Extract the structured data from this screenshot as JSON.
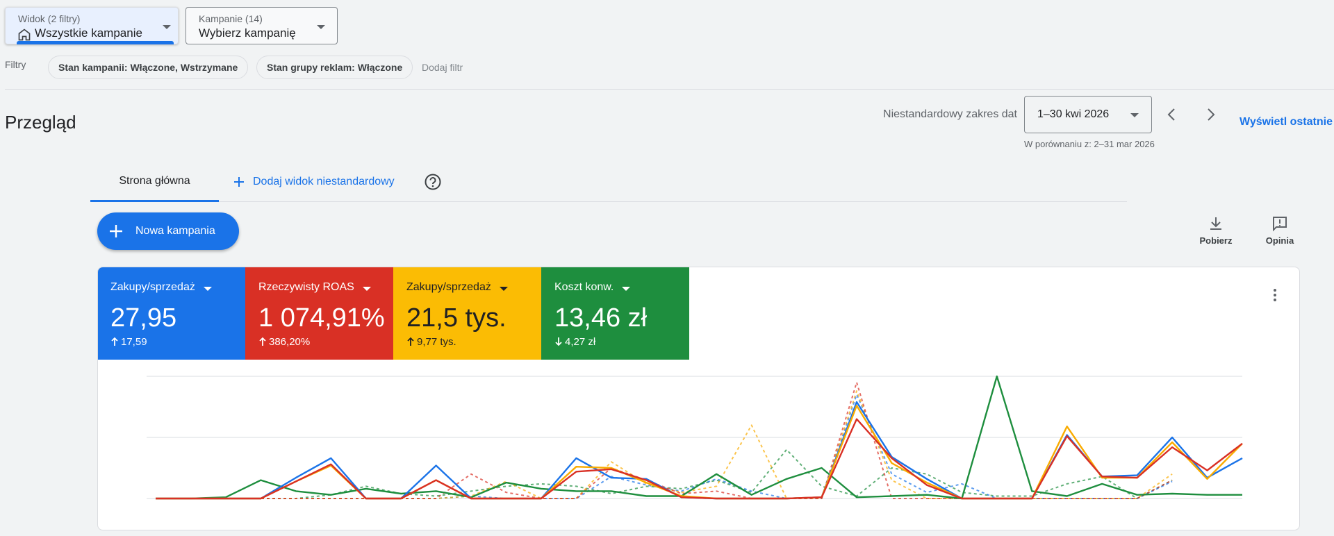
{
  "toolbar": {
    "view_dropdown": {
      "label": "Widok (2 filtry)",
      "value": "Wszystkie kampanie"
    },
    "campaign_dropdown": {
      "label": "Kampanie (14)",
      "value": "Wybierz kampanię"
    }
  },
  "filters": {
    "label": "Filtry",
    "chips": [
      "Stan kampanii: Włączone, Wstrzymane",
      "Stan grupy reklam: Włączone"
    ],
    "add": "Dodaj filtr"
  },
  "header": {
    "title": "Przegląd",
    "date_range_label": "Niestandardowy zakres dat",
    "date_range": "1–30 kwi 2026",
    "comparison": "W porównaniu z: 2–31 mar 2026",
    "view_recent": "Wyświetl ostatnie"
  },
  "tabs": {
    "items": [
      "Strona główna"
    ],
    "add": "Dodaj widok niestandardowy"
  },
  "new_campaign": "Nowa kampania",
  "actions": [
    "Pobierz",
    "Opinia"
  ],
  "scorecards": [
    {
      "label": "Zakupy/sprzedaż",
      "value": "27,95",
      "change": "17,59",
      "direction": "up",
      "color": "#1a73e8"
    },
    {
      "label": "Rzeczywisty ROAS",
      "value": "1 074,91%",
      "change": "386,20%",
      "direction": "up",
      "color": "#d93025"
    },
    {
      "label": "Zakupy/sprzedaż",
      "value": "21,5 tys.",
      "change": "9,77 tys.",
      "direction": "up",
      "color": "#fbbc04"
    },
    {
      "label": "Koszt konw.",
      "value": "13,46 zł",
      "change": "4,27 zł",
      "direction": "down",
      "color": "#1e8e3e"
    }
  ],
  "chart_data": {
    "type": "line",
    "categories": [
      null,
      null,
      null,
      null,
      null,
      null,
      null,
      null,
      null,
      null,
      null,
      null,
      null,
      null,
      null,
      null,
      null,
      null,
      null,
      null,
      null,
      null,
      null,
      null,
      null,
      null,
      null,
      null,
      null,
      null,
      null,
      null
    ],
    "ylim": [
      0,
      100
    ],
    "gridlines": [
      0,
      50,
      100
    ],
    "series": [
      {
        "color": "#1e8e3e",
        "dashed": true,
        "values": [
          0,
          0,
          0,
          0,
          0,
          3,
          10,
          4,
          2,
          6,
          10,
          12,
          10,
          4,
          10,
          8,
          15,
          5,
          40,
          10,
          2,
          25,
          20,
          5,
          2,
          2,
          12,
          18,
          0,
          15,
          null,
          null
        ]
      },
      {
        "color": "#1a73e8",
        "dashed": true,
        "values": [
          0,
          0,
          0,
          0,
          0,
          0,
          0,
          0,
          0,
          2,
          0,
          0,
          0,
          18,
          11,
          6,
          16,
          6,
          0,
          0,
          85,
          20,
          5,
          12,
          0,
          0,
          0,
          0,
          0,
          14,
          null,
          null
        ]
      },
      {
        "color": "#f9ab00",
        "dashed": true,
        "values": [
          0,
          0,
          0,
          0,
          0,
          0,
          0,
          0,
          0,
          2,
          14,
          0,
          0,
          30,
          12,
          5,
          10,
          60,
          0,
          0,
          88,
          15,
          0,
          0,
          0,
          0,
          0,
          0,
          0,
          20,
          null,
          null
        ]
      },
      {
        "color": "#d93025",
        "dashed": true,
        "values": [
          0,
          0,
          0,
          0,
          0,
          0,
          0,
          0,
          0,
          20,
          5,
          0,
          0,
          25,
          15,
          4,
          6,
          0,
          0,
          0,
          95,
          0,
          0,
          0,
          0,
          0,
          0,
          0,
          0,
          15,
          null,
          null
        ]
      },
      {
        "color": "#1e8e3e",
        "dashed": false,
        "values": [
          0,
          0,
          1,
          15,
          6,
          3,
          8,
          4,
          6,
          1,
          13,
          8,
          6,
          6,
          2,
          2,
          20,
          3,
          16,
          25,
          1,
          2,
          3,
          0,
          100,
          6,
          2,
          12,
          3,
          4,
          3,
          3
        ]
      },
      {
        "color": "#1a73e8",
        "dashed": false,
        "values": [
          0,
          0,
          0,
          0,
          17,
          33,
          0,
          0,
          27,
          0,
          0,
          0,
          33,
          17,
          16,
          1,
          0,
          0,
          0,
          1,
          79,
          34,
          16,
          0,
          0,
          0,
          52,
          18,
          19,
          50,
          17,
          33
        ]
      },
      {
        "color": "#f9ab00",
        "dashed": false,
        "values": [
          0,
          0,
          0,
          0,
          14,
          27,
          0,
          0,
          15,
          0,
          0,
          0,
          26,
          25,
          13,
          2,
          0,
          0,
          0,
          1,
          76,
          29,
          13,
          0,
          0,
          0,
          59,
          17,
          17,
          46,
          16,
          45
        ]
      },
      {
        "color": "#d93025",
        "dashed": false,
        "values": [
          0,
          0,
          0,
          0,
          14,
          28,
          0,
          0,
          15,
          0,
          0,
          0,
          22,
          24,
          15,
          1,
          0,
          0,
          0,
          1,
          65,
          33,
          11,
          0,
          0,
          0,
          51,
          18,
          17,
          42,
          23,
          45
        ]
      }
    ]
  }
}
